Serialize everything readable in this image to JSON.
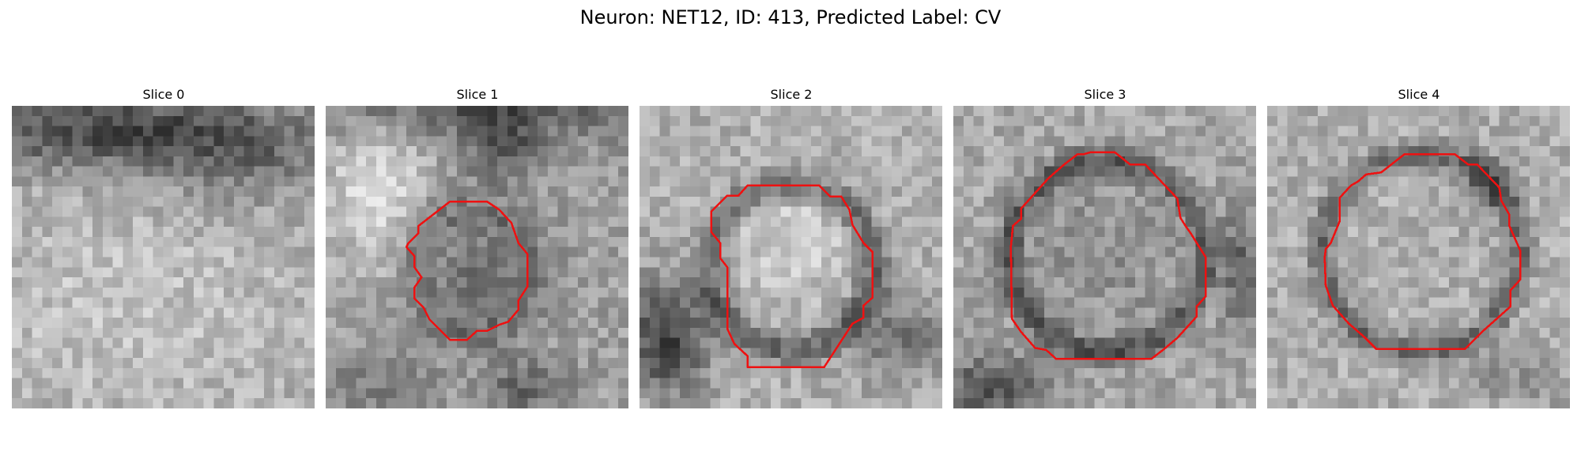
{
  "figure": {
    "title": "Neuron: NET12, ID: 413, Predicted Label: CV",
    "colormap": "grayscale",
    "outline_color": "#ee1111"
  },
  "slices": [
    {
      "label": "Slice 0"
    },
    {
      "label": "Slice 1"
    },
    {
      "label": "Slice 2"
    },
    {
      "label": "Slice 3"
    },
    {
      "label": "Slice 4"
    }
  ]
}
